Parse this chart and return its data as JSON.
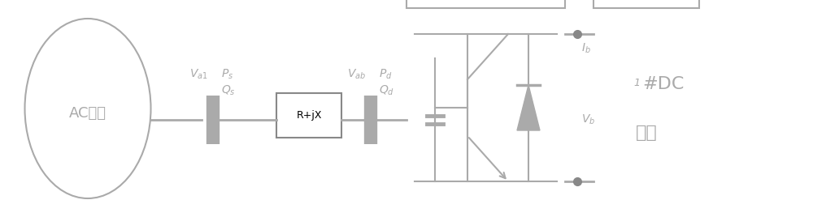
{
  "bg_color": "#ffffff",
  "line_color": "#aaaaaa",
  "box_color": "#aaaaaa",
  "text_color": "#aaaaaa",
  "figsize": [
    10.0,
    2.68
  ],
  "dpi": 100,
  "ac_label": "AC微网",
  "impedance_label": "R+jX",
  "dc_line1": "1",
  "dc_line2": "#DC",
  "dc_line3": "微网"
}
